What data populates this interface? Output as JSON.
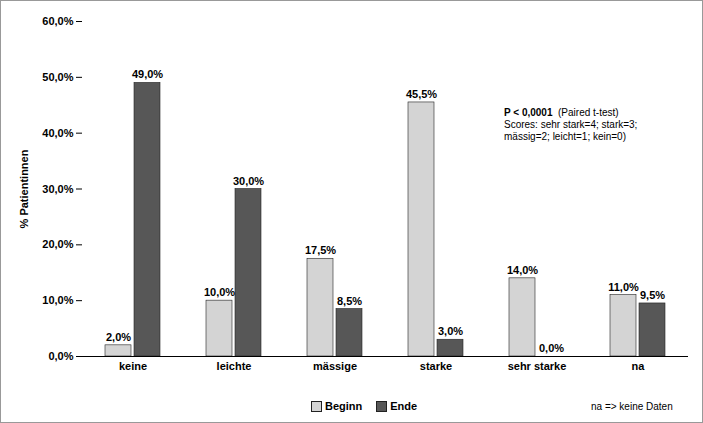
{
  "chart_data": {
    "type": "bar",
    "y_label": "% Patientinnen",
    "categories": [
      "keine",
      "leichte",
      "mässige",
      "starke",
      "sehr starke",
      "na"
    ],
    "series": [
      {
        "name": "Beginn",
        "color": "#d4d4d4",
        "values": [
          2.0,
          10.0,
          17.5,
          45.5,
          14.0,
          11.0
        ],
        "value_labels": [
          "2,0%",
          "10,0%",
          "17,5%",
          "45,5%",
          "14,0%",
          "11,0%"
        ]
      },
      {
        "name": "Ende",
        "color": "#575757",
        "values": [
          49.0,
          30.0,
          8.5,
          3.0,
          0.0,
          9.5
        ],
        "value_labels": [
          "49,0%",
          "30,0%",
          "8,5%",
          "3,0%",
          "0,0%",
          "9,5%"
        ]
      }
    ],
    "ylim": [
      0,
      60
    ],
    "yticks": [
      {
        "value": 0,
        "label": "0,0%"
      },
      {
        "value": 10,
        "label": "10,0%"
      },
      {
        "value": 20,
        "label": "20,0%"
      },
      {
        "value": 30,
        "label": "30,0%"
      },
      {
        "value": 40,
        "label": "40,0%"
      },
      {
        "value": 50,
        "label": "50,0%"
      },
      {
        "value": 60,
        "label": "60,0%"
      }
    ],
    "annotations": [
      "P < 0,0001",
      "(Paired t-test)",
      "Scores: sehr stark=4; stark=3;",
      "mässig=2; leicht=1; kein=0)"
    ],
    "caption": "na => keine Daten",
    "grid": false,
    "legend": "bottom",
    "data_labels": true
  }
}
